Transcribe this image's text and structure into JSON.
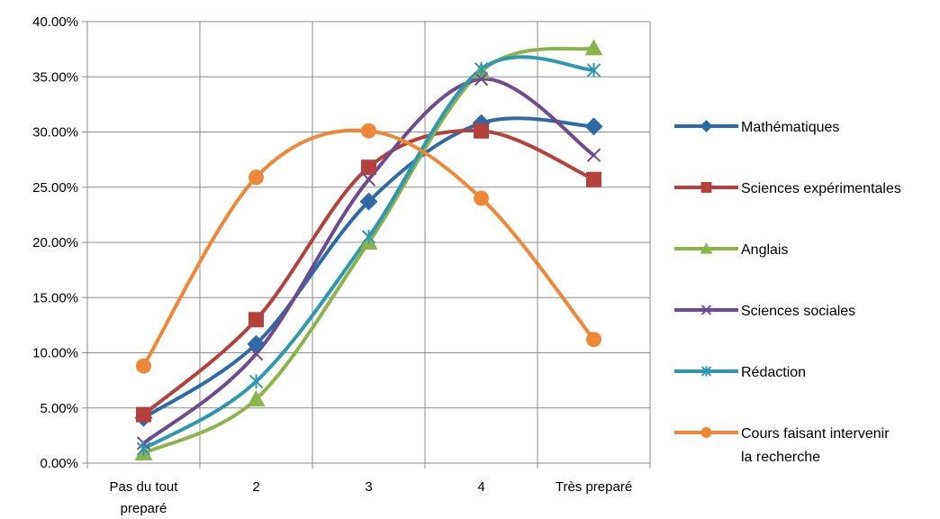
{
  "chart_data": {
    "type": "line",
    "title": "",
    "xlabel": "",
    "ylabel": "",
    "categories": [
      "Pas du tout preparé",
      "2",
      "3",
      "4",
      "Très preparé"
    ],
    "ylim": [
      0,
      0.4
    ],
    "y_tick_step": 0.05,
    "y_tick_labels": [
      "0.00%",
      "5.00%",
      "10.00%",
      "15.00%",
      "20.00%",
      "25.00%",
      "30.00%",
      "35.00%",
      "40.00%"
    ],
    "grid": true,
    "smooth": true,
    "legend_position": "right",
    "series": [
      {
        "name": "Mathématiques",
        "color": "#2E6AA6",
        "marker": "diamond",
        "values": [
          0.041,
          0.108,
          0.237,
          0.308,
          0.305
        ]
      },
      {
        "name": "Sciences expérimentales",
        "color": "#B5413D",
        "marker": "square",
        "values": [
          0.044,
          0.13,
          0.268,
          0.301,
          0.257
        ]
      },
      {
        "name": "Anglais",
        "color": "#8DB34B",
        "marker": "triangle",
        "values": [
          0.009,
          0.058,
          0.2,
          0.355,
          0.376
        ]
      },
      {
        "name": "Sciences sociales",
        "color": "#6B4C8E",
        "marker": "x",
        "values": [
          0.018,
          0.099,
          0.257,
          0.348,
          0.279
        ]
      },
      {
        "name": "Rédaction",
        "color": "#2F98B0",
        "marker": "star",
        "values": [
          0.013,
          0.074,
          0.205,
          0.357,
          0.356
        ]
      },
      {
        "name": "Cours faisant intervenir la recherche",
        "color": "#EE8838",
        "marker": "circle",
        "values": [
          0.088,
          0.259,
          0.301,
          0.24,
          0.112
        ]
      }
    ]
  }
}
